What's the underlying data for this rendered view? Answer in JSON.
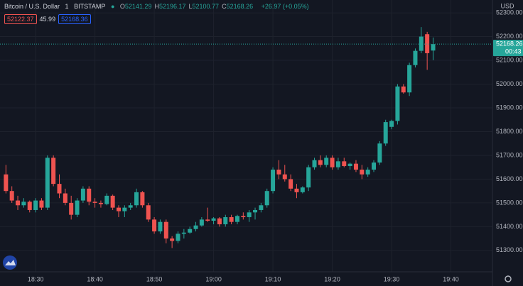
{
  "header": {
    "symbol": "Bitcoin / U.S. Dollar",
    "interval": "1",
    "exchange": "BITSTAMP",
    "ohlc": [
      {
        "label": "O",
        "value": "52141.29"
      },
      {
        "label": "H",
        "value": "52196.17"
      },
      {
        "label": "L",
        "value": "52100.77"
      },
      {
        "label": "C",
        "value": "52168.26"
      }
    ],
    "change": "+26.97 (+0.05%)",
    "sell": "52122.37",
    "spread": "45.99",
    "buy": "52168.36"
  },
  "chart_data": {
    "type": "candlestick",
    "y_axis_label": "USD",
    "up_color": "#26a69a",
    "down_color": "#ef5350",
    "x": [
      "18:25",
      "18:26",
      "18:27",
      "18:28",
      "18:29",
      "18:30",
      "18:31",
      "18:32",
      "18:33",
      "18:34",
      "18:35",
      "18:36",
      "18:37",
      "18:38",
      "18:39",
      "18:40",
      "18:41",
      "18:42",
      "18:43",
      "18:44",
      "18:45",
      "18:46",
      "18:47",
      "18:48",
      "18:49",
      "18:50",
      "18:51",
      "18:52",
      "18:53",
      "18:54",
      "18:55",
      "18:56",
      "18:57",
      "18:58",
      "18:59",
      "19:00",
      "19:01",
      "19:02",
      "19:03",
      "19:04",
      "19:05",
      "19:06",
      "19:07",
      "19:08",
      "19:09",
      "19:10",
      "19:11",
      "19:12",
      "19:13",
      "19:14",
      "19:15",
      "19:16",
      "19:17",
      "19:18",
      "19:19",
      "19:20",
      "19:21",
      "19:22",
      "19:23",
      "19:24",
      "19:25",
      "19:26",
      "19:27",
      "19:28",
      "19:29",
      "19:30",
      "19:31",
      "19:32",
      "19:33",
      "19:34",
      "19:35",
      "19:36",
      "19:37"
    ],
    "open": [
      51620,
      51550,
      51510,
      51490,
      51505,
      51470,
      51510,
      51480,
      51690,
      51580,
      51540,
      51500,
      51450,
      51510,
      51560,
      51505,
      51500,
      51495,
      51530,
      51480,
      51465,
      51480,
      51490,
      51545,
      51490,
      51430,
      51380,
      51420,
      51350,
      51340,
      51370,
      51375,
      51390,
      51405,
      51430,
      51425,
      51435,
      51410,
      51440,
      51420,
      51445,
      51440,
      51460,
      51470,
      51490,
      51550,
      51640,
      51620,
      51600,
      51560,
      51545,
      51565,
      51650,
      51680,
      51660,
      51690,
      51650,
      51675,
      51655,
      51665,
      51640,
      51620,
      51640,
      51670,
      51750,
      51820,
      51845,
      51990,
      51965,
      52080,
      52140,
      52210,
      52141.29
    ],
    "high": [
      51660,
      51570,
      51530,
      51520,
      51510,
      51520,
      51520,
      51700,
      51700,
      51620,
      51560,
      51530,
      51520,
      51570,
      51570,
      51520,
      51510,
      51540,
      51535,
      51490,
      51490,
      51500,
      51560,
      51550,
      51500,
      51440,
      51430,
      51430,
      51360,
      51380,
      51390,
      51400,
      51420,
      51440,
      51480,
      51440,
      51440,
      51450,
      51450,
      51450,
      51460,
      51470,
      51480,
      51500,
      51560,
      51650,
      51680,
      51660,
      51620,
      51580,
      51570,
      51660,
      51690,
      51700,
      51700,
      51700,
      51690,
      51690,
      51670,
      51680,
      51660,
      51650,
      51680,
      51760,
      51850,
      51850,
      52000,
      52000,
      52090,
      52150,
      52240,
      52220,
      52196.17
    ],
    "low": [
      51540,
      51500,
      51470,
      51480,
      51460,
      51460,
      51470,
      51470,
      51570,
      51520,
      51490,
      51430,
      51440,
      51500,
      51490,
      51480,
      51480,
      51490,
      51470,
      51440,
      51440,
      51470,
      51480,
      51480,
      51420,
      51370,
      51370,
      51330,
      51310,
      51330,
      51350,
      51370,
      51380,
      51400,
      51420,
      51410,
      51400,
      51400,
      51410,
      51410,
      51430,
      51420,
      51430,
      51460,
      51480,
      51540,
      51600,
      51590,
      51550,
      51520,
      51540,
      51550,
      51640,
      51650,
      51650,
      51640,
      51640,
      51650,
      51640,
      51630,
      51600,
      51610,
      51630,
      51660,
      51740,
      51810,
      51830,
      51960,
      51950,
      52070,
      52130,
      52060,
      52100.77
    ],
    "close": [
      51550,
      51510,
      51490,
      51505,
      51470,
      51510,
      51480,
      51690,
      51580,
      51540,
      51500,
      51450,
      51510,
      51560,
      51505,
      51500,
      51495,
      51530,
      51480,
      51465,
      51480,
      51490,
      51545,
      51490,
      51430,
      51380,
      51420,
      51350,
      51340,
      51370,
      51375,
      51390,
      51405,
      51430,
      51425,
      51435,
      51410,
      51440,
      51420,
      51445,
      51440,
      51460,
      51470,
      51490,
      51550,
      51640,
      51620,
      51600,
      51560,
      51545,
      51565,
      51650,
      51680,
      51660,
      51690,
      51650,
      51675,
      51655,
      51665,
      51640,
      51620,
      51640,
      51670,
      51750,
      51840,
      51845,
      51990,
      51965,
      52080,
      52140,
      52200,
      52130,
      52168.26
    ],
    "xlim": [
      "18:24",
      "19:47"
    ],
    "xticks": [
      "18:30",
      "18:40",
      "18:50",
      "19:00",
      "19:10",
      "19:20",
      "19:30",
      "19:40"
    ],
    "ylim": [
      51210,
      52354
    ],
    "yticks": [
      {
        "value": 51300,
        "label": "51300.00"
      },
      {
        "value": 51400,
        "label": "51400.00"
      },
      {
        "value": 51500,
        "label": "51500.00"
      },
      {
        "value": 51600,
        "label": "51600.00"
      },
      {
        "value": 51700,
        "label": "51700.00"
      },
      {
        "value": 51800,
        "label": "51800.00"
      },
      {
        "value": 51900,
        "label": "51900.00"
      },
      {
        "value": 52000,
        "label": "52000.00"
      },
      {
        "value": 52100,
        "label": "52100.00"
      },
      {
        "value": 52200,
        "label": "52200.00"
      },
      {
        "value": 52300,
        "label": "52300.00"
      }
    ],
    "grid": true,
    "last_price": {
      "value": 52168.26,
      "label": "52168.26"
    },
    "countdown": "00:43"
  }
}
